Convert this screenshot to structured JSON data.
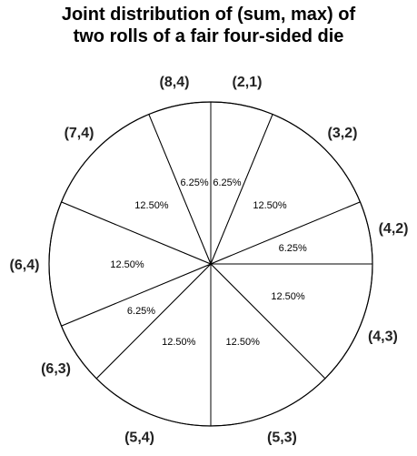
{
  "chart_data": {
    "type": "pie",
    "title_line1": "Joint distribution of (sum, max) of",
    "title_line2": "two rolls of a fair four-sided die",
    "slices": [
      {
        "label": "(2,1)",
        "value": 6.25,
        "pct_text": "6.25%"
      },
      {
        "label": "(3,2)",
        "value": 12.5,
        "pct_text": "12.50%"
      },
      {
        "label": "(4,2)",
        "value": 6.25,
        "pct_text": "6.25%"
      },
      {
        "label": "(4,3)",
        "value": 12.5,
        "pct_text": "12.50%"
      },
      {
        "label": "(5,3)",
        "value": 12.5,
        "pct_text": "12.50%"
      },
      {
        "label": "(5,4)",
        "value": 12.5,
        "pct_text": "12.50%"
      },
      {
        "label": "(6,3)",
        "value": 6.25,
        "pct_text": "6.25%"
      },
      {
        "label": "(6,4)",
        "value": 12.5,
        "pct_text": "12.50%"
      },
      {
        "label": "(7,4)",
        "value": 12.5,
        "pct_text": "12.50%"
      },
      {
        "label": "(8,4)",
        "value": 6.25,
        "pct_text": "6.25%"
      }
    ],
    "start": "top",
    "direction": "clockwise",
    "fill_color": "#ffffff",
    "stroke_color": "#000000"
  }
}
